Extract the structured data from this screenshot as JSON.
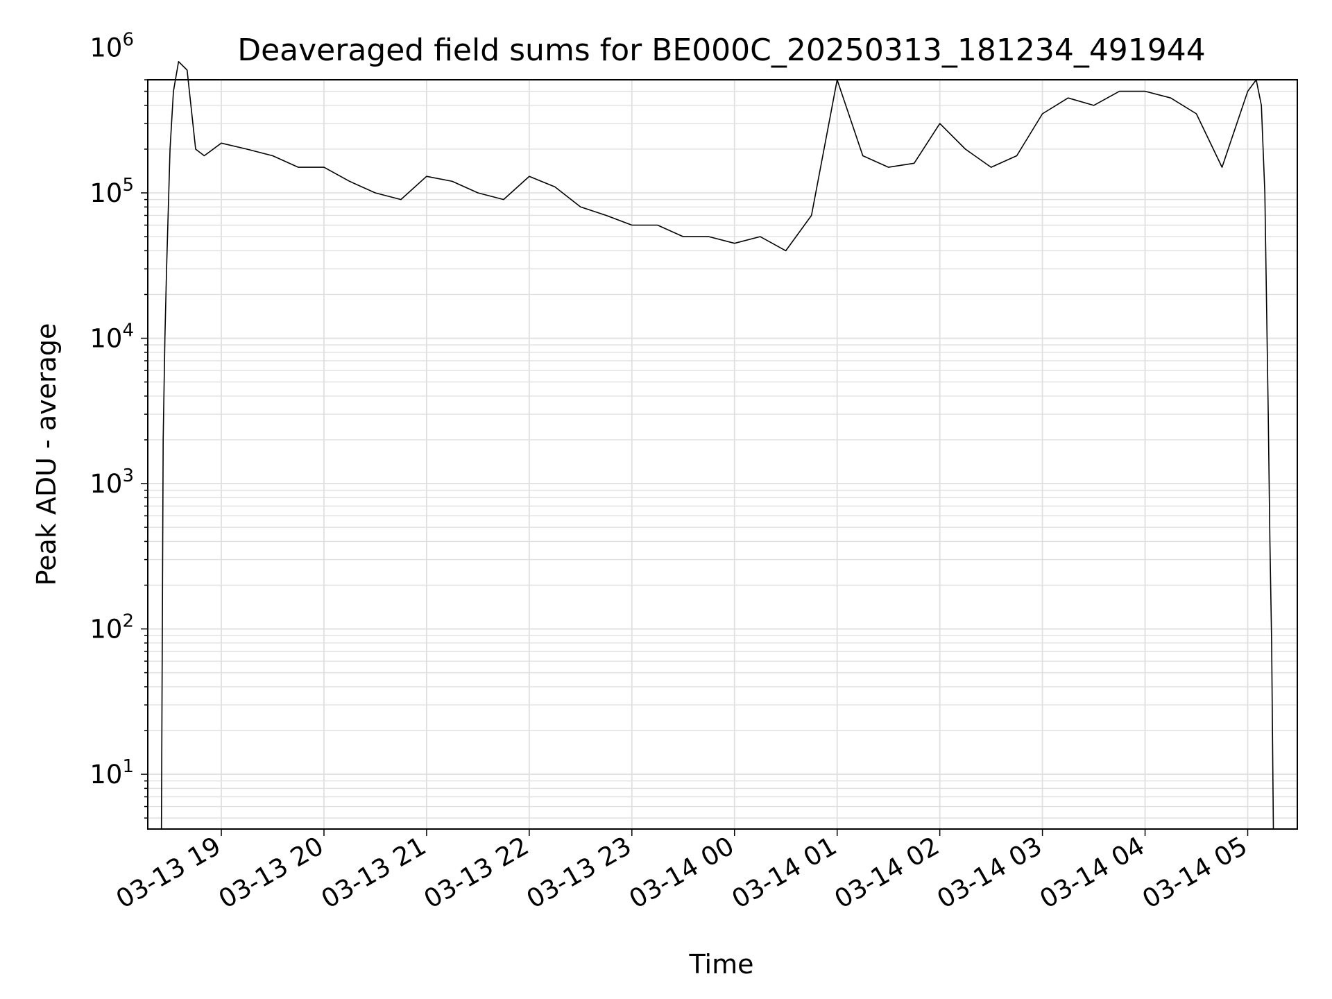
{
  "chart_data": {
    "type": "line",
    "title": "Deaveraged field sums for BE000C_20250313_181234_491944",
    "xlabel": "Time",
    "ylabel": "Peak ADU - average",
    "yscale": "log",
    "ylim": [
      4.2,
      600000
    ],
    "xlim": [
      "2025-03-13 18:17",
      "2025-03-14 05:29"
    ],
    "grid": true,
    "x_ticks": [
      "03-13 19",
      "03-13 20",
      "03-13 21",
      "03-13 22",
      "03-13 23",
      "03-14 00",
      "03-14 01",
      "03-14 02",
      "03-14 03",
      "03-14 04",
      "03-14 05"
    ],
    "x_tick_times": [
      "2025-03-13 19:00",
      "2025-03-13 20:00",
      "2025-03-13 21:00",
      "2025-03-13 22:00",
      "2025-03-13 23:00",
      "2025-03-14 00:00",
      "2025-03-14 01:00",
      "2025-03-14 02:00",
      "2025-03-14 03:00",
      "2025-03-14 04:00",
      "2025-03-14 05:00"
    ],
    "y_ticks": [
      {
        "base": "10",
        "exp": "1",
        "value": 10
      },
      {
        "base": "10",
        "exp": "2",
        "value": 100
      },
      {
        "base": "10",
        "exp": "3",
        "value": 1000
      },
      {
        "base": "10",
        "exp": "4",
        "value": 10000
      },
      {
        "base": "10",
        "exp": "5",
        "value": 100000
      },
      {
        "base": "10",
        "exp": "6",
        "value": 1000000
      }
    ],
    "series": [
      {
        "color": "#000000",
        "x": [
          "2025-03-13 18:25",
          "2025-03-13 18:26",
          "2025-03-13 18:27",
          "2025-03-13 18:28",
          "2025-03-13 18:30",
          "2025-03-13 18:32",
          "2025-03-13 18:35",
          "2025-03-13 18:40",
          "2025-03-13 18:45",
          "2025-03-13 18:50",
          "2025-03-13 19:00",
          "2025-03-13 19:15",
          "2025-03-13 19:30",
          "2025-03-13 19:45",
          "2025-03-13 20:00",
          "2025-03-13 20:15",
          "2025-03-13 20:30",
          "2025-03-13 20:45",
          "2025-03-13 21:00",
          "2025-03-13 21:15",
          "2025-03-13 21:30",
          "2025-03-13 21:45",
          "2025-03-13 22:00",
          "2025-03-13 22:15",
          "2025-03-13 22:30",
          "2025-03-13 22:45",
          "2025-03-13 23:00",
          "2025-03-13 23:15",
          "2025-03-13 23:30",
          "2025-03-13 23:45",
          "2025-03-14 00:00",
          "2025-03-14 00:15",
          "2025-03-14 00:30",
          "2025-03-14 00:45",
          "2025-03-14 01:00",
          "2025-03-14 01:15",
          "2025-03-14 01:30",
          "2025-03-14 01:45",
          "2025-03-14 02:00",
          "2025-03-14 02:15",
          "2025-03-14 02:30",
          "2025-03-14 02:45",
          "2025-03-14 03:00",
          "2025-03-14 03:15",
          "2025-03-14 03:30",
          "2025-03-14 03:45",
          "2025-03-14 04:00",
          "2025-03-14 04:15",
          "2025-03-14 04:30",
          "2025-03-14 04:45",
          "2025-03-14 05:00",
          "2025-03-14 05:05",
          "2025-03-14 05:08",
          "2025-03-14 05:10",
          "2025-03-14 05:12",
          "2025-03-14 05:13",
          "2025-03-14 05:14",
          "2025-03-14 05:15"
        ],
        "y": [
          4.2,
          2000,
          10000,
          30000,
          200000,
          500000,
          800000,
          700000,
          200000,
          180000,
          220000,
          200000,
          180000,
          150000,
          150000,
          120000,
          100000,
          90000,
          130000,
          120000,
          100000,
          90000,
          130000,
          110000,
          80000,
          70000,
          60000,
          60000,
          50000,
          50000,
          45000,
          50000,
          40000,
          70000,
          600000,
          180000,
          150000,
          160000,
          300000,
          200000,
          150000,
          180000,
          350000,
          450000,
          400000,
          500000,
          500000,
          450000,
          350000,
          150000,
          500000,
          600000,
          400000,
          100000,
          3000,
          400,
          80,
          4.2
        ]
      }
    ]
  }
}
